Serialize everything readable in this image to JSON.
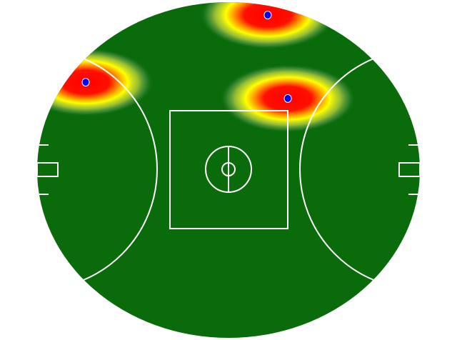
{
  "chart_data": {
    "type": "heatmap",
    "background": "australian-rules-football-field",
    "field_units": "meters",
    "field_length": 160,
    "field_width": 130,
    "xlim": [
      -80,
      80
    ],
    "ylim": [
      -65,
      65
    ],
    "grid": false,
    "colors": {
      "field": "#0a6b0a",
      "lines": "#ffffff",
      "heat_low": "#ffff00",
      "heat_high": "#ff0000",
      "point": "#0000ff"
    },
    "points": [
      {
        "x": -59.7,
        "y": 34.0
      },
      {
        "x": 16.4,
        "y": 60.0
      },
      {
        "x": 24.8,
        "y": 27.7
      }
    ]
  }
}
